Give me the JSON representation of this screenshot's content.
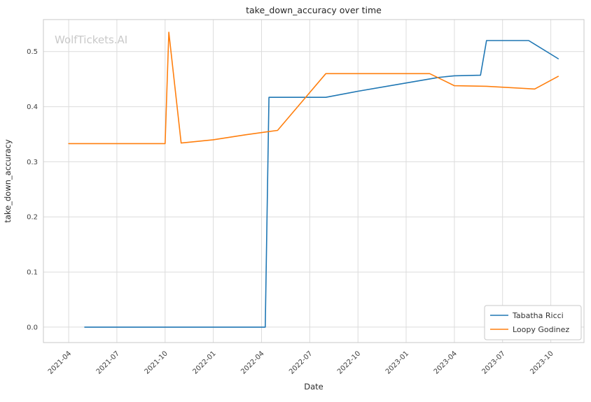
{
  "watermark": "WolfTickets.AI",
  "chart_data": {
    "type": "line",
    "title": "take_down_accuracy over time",
    "xlabel": "Date",
    "ylabel": "take_down_accuracy",
    "grid": true,
    "legend_position": "lower right",
    "x_tick_labels": [
      "2021-04",
      "2021-07",
      "2021-10",
      "2022-01",
      "2022-04",
      "2022-07",
      "2022-10",
      "2023-01",
      "2023-04",
      "2023-07",
      "2023-10"
    ],
    "y_tick_labels": [
      "0.0",
      "0.1",
      "0.2",
      "0.3",
      "0.4",
      "0.5"
    ],
    "xlim_dates": [
      "2021-02-14",
      "2023-12-03"
    ],
    "ylim": [
      -0.028,
      0.558
    ],
    "series": [
      {
        "name": "Tabatha Ricci",
        "color": "#1f77b4",
        "points": [
          {
            "date": "2021-05-01",
            "value": 0.0
          },
          {
            "date": "2022-04-08",
            "value": 0.0
          },
          {
            "date": "2022-04-15",
            "value": 0.417
          },
          {
            "date": "2022-08-01",
            "value": 0.417
          },
          {
            "date": "2022-10-01",
            "value": 0.428
          },
          {
            "date": "2023-01-01",
            "value": 0.443
          },
          {
            "date": "2023-03-01",
            "value": 0.453
          },
          {
            "date": "2023-04-01",
            "value": 0.456
          },
          {
            "date": "2023-05-20",
            "value": 0.457
          },
          {
            "date": "2023-06-01",
            "value": 0.52
          },
          {
            "date": "2023-08-20",
            "value": 0.52
          },
          {
            "date": "2023-10-15",
            "value": 0.487
          }
        ]
      },
      {
        "name": "Loopy Godinez",
        "color": "#ff7f0e",
        "points": [
          {
            "date": "2021-04-01",
            "value": 0.333
          },
          {
            "date": "2021-10-01",
            "value": 0.333
          },
          {
            "date": "2021-10-08",
            "value": 0.535
          },
          {
            "date": "2021-11-01",
            "value": 0.334
          },
          {
            "date": "2022-01-01",
            "value": 0.34
          },
          {
            "date": "2022-03-01",
            "value": 0.349
          },
          {
            "date": "2022-05-01",
            "value": 0.357
          },
          {
            "date": "2022-08-01",
            "value": 0.46
          },
          {
            "date": "2023-02-15",
            "value": 0.46
          },
          {
            "date": "2023-04-01",
            "value": 0.438
          },
          {
            "date": "2023-06-01",
            "value": 0.437
          },
          {
            "date": "2023-09-01",
            "value": 0.432
          },
          {
            "date": "2023-10-15",
            "value": 0.455
          }
        ]
      }
    ]
  }
}
